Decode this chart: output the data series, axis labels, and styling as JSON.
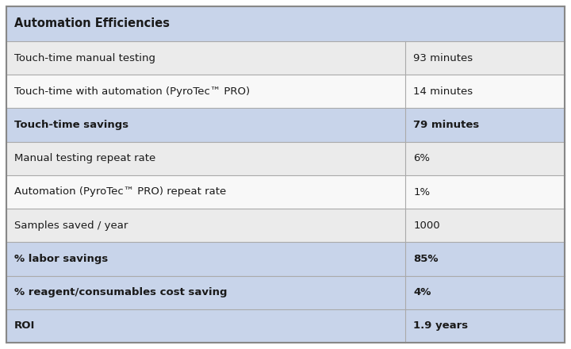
{
  "title": "Automation Efficiencies",
  "rows": [
    {
      "label": "Touch-time manual testing",
      "value": "93 minutes",
      "bold": false,
      "highlight": false,
      "alt": 0
    },
    {
      "label": "Touch-time with automation (PyroTec™ PRO)",
      "value": "14 minutes",
      "bold": false,
      "highlight": false,
      "alt": 1
    },
    {
      "label": "Touch-time savings",
      "value": "79 minutes",
      "bold": true,
      "highlight": true,
      "alt": -1
    },
    {
      "label": "Manual testing repeat rate",
      "value": "6%",
      "bold": false,
      "highlight": false,
      "alt": 0
    },
    {
      "label": "Automation (PyroTec™ PRO) repeat rate",
      "value": "1%",
      "bold": false,
      "highlight": false,
      "alt": 1
    },
    {
      "label": "Samples saved / year",
      "value": "1000",
      "bold": false,
      "highlight": false,
      "alt": 0
    },
    {
      "label": "% labor savings",
      "value": "85%",
      "bold": true,
      "highlight": true,
      "alt": -1
    },
    {
      "label": "% reagent/consumables cost saving",
      "value": "4%",
      "bold": true,
      "highlight": true,
      "alt": -1
    },
    {
      "label": "ROI",
      "value": "1.9 years",
      "bold": true,
      "highlight": true,
      "alt": -1
    }
  ],
  "col_split": 0.715,
  "header_bg": "#c8d4ea",
  "highlight_bg": "#c8d4ea",
  "normal_bg_odd": "#ebebeb",
  "normal_bg_even": "#f8f8f8",
  "border_color": "#aaaaaa",
  "text_color": "#1a1a1a",
  "header_font_size": 10.5,
  "row_font_size": 9.5,
  "outer_border_color": "#888888"
}
